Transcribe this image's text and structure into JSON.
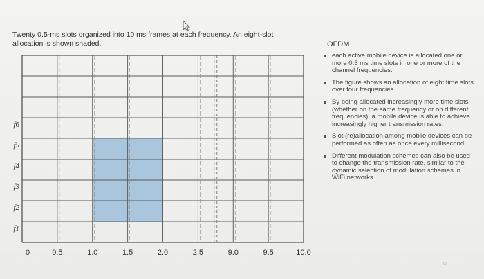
{
  "caption": "Twenty 0.5-ms slots organized into 10 ms frames at each frequency. An eight-slot allocation is shown shaded.",
  "panel": {
    "title": "OFDM",
    "bullets": [
      "each active mobile device is allocated one or more 0.5 ms time slots in one or more of the channel frequencies.",
      "The figure shows an allocation of eight time slots over four frequencies.",
      "By being allocated increasingly more time slots (whether on the same frequency or on different frequencies), a mobile device is able to achieve increasingly higher transmission rates.",
      "Slot (re)allocation among mobile devices can be performed as often as once every millisecond.",
      "Different modulation schemes can also be used to change the transmission rate, similar to the dynamic selection of modulation schemes in WiFi networks."
    ]
  },
  "page_number": "50",
  "chart_data": {
    "type": "diagram",
    "x_ticks": [
      "0",
      "0.5",
      "1.0",
      "1.5",
      "2.0",
      "2.5",
      "9.0",
      "9.5",
      "10.0"
    ],
    "freq_labels": [
      "f6",
      "f5",
      "f4",
      "f3",
      "f2",
      "f1"
    ],
    "allocation": {
      "time_start": 1.0,
      "time_end": 2.0,
      "freq_rows": [
        "f2",
        "f3",
        "f4",
        "f5"
      ],
      "slots": 8,
      "color": "#a9c6dc"
    },
    "axis_break_after": 2.5
  }
}
